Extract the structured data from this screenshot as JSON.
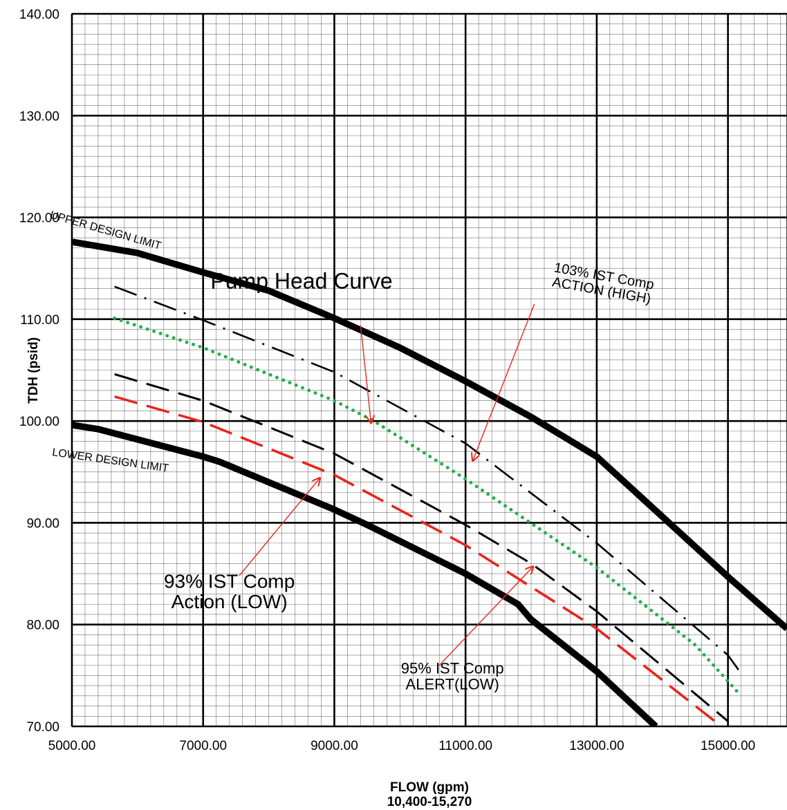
{
  "chart_data": {
    "type": "line",
    "title": "",
    "xlabel": "FLOW (gpm)",
    "xlabel_sub": "10,400-15,270",
    "ylabel": "TDH (psid)",
    "xlim": [
      5000,
      15900
    ],
    "ylim": [
      70,
      140
    ],
    "x_ticks": [
      "5000.00",
      "7000.00",
      "9000.00",
      "11000.00",
      "13000.00",
      "15000.00"
    ],
    "y_ticks": [
      "70.00",
      "80.00",
      "90.00",
      "100.00",
      "110.00",
      "120.00",
      "130.00",
      "140.00"
    ],
    "grid": true,
    "series": [
      {
        "name": "UPPER DESIGN LIMIT",
        "color": "#000000",
        "style": "solid-thick",
        "points": [
          [
            5000,
            117.6
          ],
          [
            6000,
            116.5
          ],
          [
            7000,
            114.6
          ],
          [
            8000,
            112.8
          ],
          [
            9000,
            110.1
          ],
          [
            10000,
            107.2
          ],
          [
            11000,
            103.9
          ],
          [
            12000,
            100.4
          ],
          [
            13000,
            96.5
          ],
          [
            14000,
            90.6
          ],
          [
            15000,
            84.7
          ],
          [
            15900,
            79.6
          ]
        ]
      },
      {
        "name": "103% IST Comp ACTION (HIGH)",
        "color": "#000000",
        "style": "dashdot",
        "points": [
          [
            5650,
            113.2
          ],
          [
            7000,
            109.9
          ],
          [
            9000,
            104.8
          ],
          [
            11000,
            97.8
          ],
          [
            13000,
            88.0
          ],
          [
            15000,
            77.0
          ],
          [
            15200,
            75.2
          ]
        ]
      },
      {
        "name": "Pump Head Curve",
        "color": "#22b04a",
        "style": "dotted",
        "points": [
          [
            5650,
            110.1
          ],
          [
            7000,
            107.2
          ],
          [
            9000,
            102.0
          ],
          [
            9600,
            100.0
          ],
          [
            11000,
            94.3
          ],
          [
            13000,
            85.6
          ],
          [
            14500,
            78.0
          ],
          [
            15200,
            73.0
          ]
        ]
      },
      {
        "name": "95% IST Comp ALERT(LOW)",
        "color": "#000000",
        "style": "dashed",
        "points": [
          [
            5650,
            104.6
          ],
          [
            7000,
            102.0
          ],
          [
            9000,
            96.8
          ],
          [
            11000,
            89.8
          ],
          [
            12000,
            86.0
          ],
          [
            13000,
            81.3
          ],
          [
            15000,
            70.5
          ]
        ]
      },
      {
        "name": "93% IST Comp Action (LOW)",
        "color": "#e8261c",
        "style": "dashed",
        "points": [
          [
            5650,
            102.4
          ],
          [
            7000,
            99.9
          ],
          [
            9000,
            94.7
          ],
          [
            11000,
            87.8
          ],
          [
            13000,
            79.6
          ],
          [
            14900,
            70.0
          ]
        ]
      },
      {
        "name": "LOWER DESIGN LIMIT",
        "color": "#000000",
        "style": "solid-thick",
        "points": [
          [
            5000,
            99.6
          ],
          [
            5400,
            99.2
          ],
          [
            7000,
            96.5
          ],
          [
            7250,
            96.0
          ],
          [
            9000,
            91.3
          ],
          [
            9500,
            89.8
          ],
          [
            11000,
            85.0
          ],
          [
            11800,
            82.0
          ],
          [
            12000,
            80.5
          ],
          [
            13000,
            75.4
          ],
          [
            13900,
            70.0
          ]
        ]
      }
    ],
    "annotations": [
      {
        "text": "UPPER DESIGN LIMIT",
        "x": 5500,
        "y": 118.4,
        "rotate": 16,
        "size": 16,
        "arrow": null
      },
      {
        "text": "LOWER DESIGN LIMIT",
        "x": 5580,
        "y": 95.8,
        "rotate": 8,
        "size": 16,
        "arrow": null
      },
      {
        "text": "Pump Head Curve",
        "x": 8500,
        "y": 113.0,
        "rotate": 0,
        "size": 32,
        "arrow": {
          "from": [
            9400,
            109.4
          ],
          "to": [
            9560,
            99.8
          ]
        }
      },
      {
        "lines": [
          "103% IST Comp",
          "ACTION (HIGH)"
        ],
        "x": 13100,
        "y": 113.8,
        "rotate": 10,
        "size": 20,
        "arrow": {
          "from": [
            12050,
            111.5
          ],
          "to": [
            11110,
            96.1
          ]
        }
      },
      {
        "lines": [
          "93% IST Comp",
          "Action (LOW)"
        ],
        "x": 7400,
        "y": 83.6,
        "rotate": 0,
        "size": 28,
        "arrow": {
          "from": [
            7550,
            84.8
          ],
          "to": [
            8780,
            94.4
          ]
        }
      },
      {
        "lines": [
          "95% IST Comp",
          "ALERT(LOW)"
        ],
        "x": 10800,
        "y": 75.2,
        "rotate": 0,
        "size": 22,
        "arrow": {
          "from": [
            10600,
            76.0
          ],
          "to": [
            12030,
            85.7
          ]
        }
      }
    ]
  }
}
